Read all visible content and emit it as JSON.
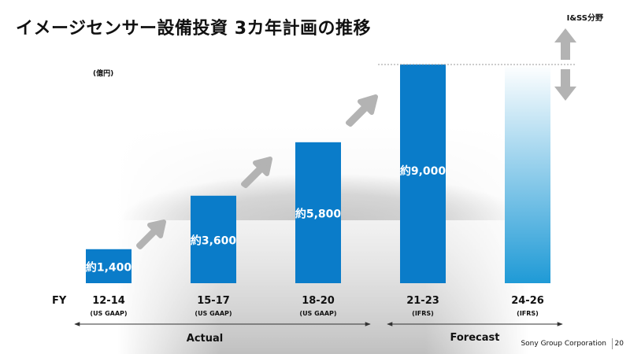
{
  "title": "イメージセンサー設備投資 3カ年計画の推移",
  "segment_tag": "I&SS分野",
  "footer": {
    "company": "Sony Group Corporation",
    "page": "20"
  },
  "colors": {
    "actual": "#0a7cc9",
    "forecast_top": "#ffffff",
    "forecast_bottom": "#1f9ad6",
    "arrow": "#b3b3b3"
  },
  "chart_data": {
    "type": "bar",
    "unit_label": "(億円)",
    "fy_label": "FY",
    "categories": [
      "12-14",
      "15-17",
      "18-20",
      "21-23",
      "24-26"
    ],
    "subcategories": [
      "(US GAAP)",
      "(US GAAP)",
      "(US GAAP)",
      "(IFRS)",
      "(IFRS)"
    ],
    "values": [
      1400,
      3600,
      5800,
      9000,
      9000
    ],
    "value_labels": [
      "約1,400",
      "約3,600",
      "約5,800",
      "約9,000",
      ""
    ],
    "periods": [
      "actual",
      "actual",
      "actual",
      "forecast",
      "forecast"
    ],
    "group_labels": {
      "actual": "Actual",
      "forecast": "Forecast"
    },
    "ylim": [
      0,
      9000
    ]
  }
}
